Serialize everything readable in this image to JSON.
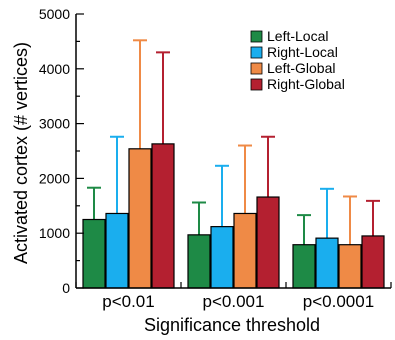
{
  "chart_data": {
    "type": "bar",
    "title": "",
    "xlabel": "Significance threshold",
    "ylabel": "Activated cortex (# vertices)",
    "ylim": [
      0,
      5000
    ],
    "yticks": [
      0,
      1000,
      2000,
      3000,
      4000,
      5000
    ],
    "yticks_minor_step": 500,
    "grid": false,
    "legend_position": "top-right",
    "error_bars": "upper",
    "categories": [
      "p<0.01",
      "p<0.001",
      "p<0.0001"
    ],
    "series": [
      {
        "name": "Left-Local",
        "color": "#1e8a46",
        "values": [
          1250,
          970,
          790
        ],
        "errors_upper": [
          1830,
          1560,
          1330
        ]
      },
      {
        "name": "Right-Local",
        "color": "#1aaeee",
        "values": [
          1360,
          1120,
          910
        ],
        "errors_upper": [
          2760,
          2230,
          1810
        ]
      },
      {
        "name": "Left-Global",
        "color": "#ef8a46",
        "values": [
          2540,
          1360,
          790
        ],
        "errors_upper": [
          4520,
          2600,
          1670
        ]
      },
      {
        "name": "Right-Global",
        "color": "#b42030",
        "values": [
          2630,
          1660,
          950
        ],
        "errors_upper": [
          4300,
          2760,
          1590
        ]
      }
    ]
  }
}
